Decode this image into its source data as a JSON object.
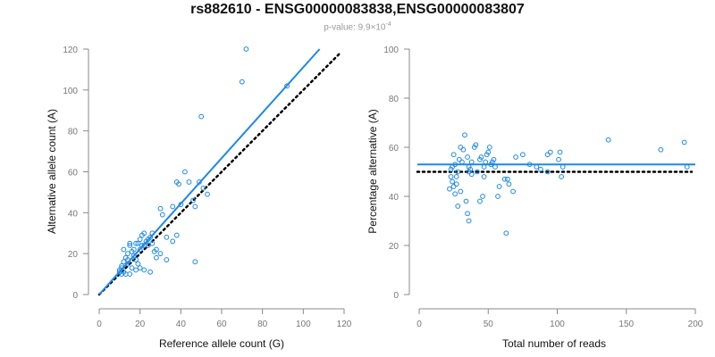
{
  "title": "rs882610 - ENSG00000083838,ENSG00000083807",
  "subtitle": {
    "prefix": "p-value: 9.9×10",
    "exponent": "-4"
  },
  "colors": {
    "points": "#1e88e5",
    "fit_line": "#1e88e5",
    "reference_line": "#000000",
    "axis": "#888888"
  },
  "chart_data": [
    {
      "type": "scatter",
      "xlabel": "Reference allele count (G)",
      "ylabel": "Alternative allele count (A)",
      "xlim": [
        0,
        120
      ],
      "ylim": [
        0,
        120
      ],
      "xticks": [
        0,
        20,
        40,
        60,
        80,
        100,
        120
      ],
      "yticks": [
        0,
        20,
        40,
        60,
        80,
        100,
        120
      ],
      "grid": false,
      "fit_line": {
        "style": "solid",
        "x": [
          0,
          108
        ],
        "y": [
          0,
          120
        ]
      },
      "reference_line": {
        "style": "dotted",
        "x": [
          0,
          118
        ],
        "y": [
          0,
          118
        ]
      },
      "points": [
        [
          72,
          120
        ],
        [
          70,
          104
        ],
        [
          92,
          102
        ],
        [
          50,
          87
        ],
        [
          42,
          60
        ],
        [
          38,
          55
        ],
        [
          39,
          54
        ],
        [
          44,
          55
        ],
        [
          49,
          55
        ],
        [
          51,
          52
        ],
        [
          53,
          49
        ],
        [
          46,
          46
        ],
        [
          40,
          44
        ],
        [
          47,
          43
        ],
        [
          36,
          43
        ],
        [
          30,
          42
        ],
        [
          31,
          39
        ],
        [
          47,
          16
        ],
        [
          36,
          26
        ],
        [
          38,
          29
        ],
        [
          30,
          20
        ],
        [
          28,
          18
        ],
        [
          33,
          17
        ],
        [
          25,
          28
        ],
        [
          26,
          25
        ],
        [
          24,
          24
        ],
        [
          22,
          30
        ],
        [
          21,
          29
        ],
        [
          23,
          26
        ],
        [
          20,
          27
        ],
        [
          19,
          25
        ],
        [
          21,
          24
        ],
        [
          18,
          25
        ],
        [
          20,
          22
        ],
        [
          17,
          22
        ],
        [
          16,
          21
        ],
        [
          15,
          24
        ],
        [
          15,
          25
        ],
        [
          14,
          20
        ],
        [
          13,
          18
        ],
        [
          14,
          17
        ],
        [
          12,
          16
        ],
        [
          11,
          14
        ],
        [
          11,
          13
        ],
        [
          10,
          12
        ],
        [
          10,
          11
        ],
        [
          12,
          11
        ],
        [
          12,
          22
        ],
        [
          18,
          17
        ],
        [
          19,
          15
        ],
        [
          18,
          12
        ],
        [
          20,
          13
        ],
        [
          22,
          12
        ],
        [
          25,
          11
        ],
        [
          13,
          10
        ],
        [
          15,
          10
        ],
        [
          11,
          10
        ],
        [
          16,
          13
        ],
        [
          14,
          15
        ],
        [
          17,
          19
        ],
        [
          22,
          24
        ],
        [
          28,
          22
        ],
        [
          26,
          30
        ],
        [
          24,
          27
        ],
        [
          33,
          28
        ],
        [
          27,
          21
        ]
      ]
    },
    {
      "type": "scatter",
      "xlabel": "Total number of reads",
      "ylabel": "Percentage alternative (A)",
      "xlim": [
        0,
        200
      ],
      "ylim": [
        0,
        100
      ],
      "xticks": [
        0,
        50,
        100,
        150,
        200
      ],
      "yticks": [
        0,
        20,
        40,
        60,
        80,
        100
      ],
      "grid": false,
      "fit_line": {
        "style": "solid",
        "y": 53
      },
      "reference_line": {
        "style": "dotted",
        "y": 50
      },
      "points": [
        [
          192,
          62
        ],
        [
          194,
          52
        ],
        [
          175,
          59
        ],
        [
          137,
          63
        ],
        [
          104,
          52
        ],
        [
          103,
          48
        ],
        [
          102,
          58
        ],
        [
          101,
          55
        ],
        [
          95,
          58
        ],
        [
          93,
          57
        ],
        [
          93,
          50
        ],
        [
          88,
          51
        ],
        [
          85,
          52
        ],
        [
          80,
          53
        ],
        [
          75,
          57
        ],
        [
          70,
          56
        ],
        [
          68,
          42
        ],
        [
          65,
          45
        ],
        [
          63,
          25
        ],
        [
          62,
          47
        ],
        [
          64,
          47
        ],
        [
          58,
          44
        ],
        [
          57,
          40
        ],
        [
          55,
          52
        ],
        [
          54,
          55
        ],
        [
          53,
          54
        ],
        [
          52,
          53
        ],
        [
          51,
          60
        ],
        [
          50,
          58
        ],
        [
          49,
          57
        ],
        [
          48,
          54
        ],
        [
          47,
          52
        ],
        [
          47,
          48
        ],
        [
          46,
          40
        ],
        [
          45,
          56
        ],
        [
          44,
          55
        ],
        [
          44,
          38
        ],
        [
          42,
          50
        ],
        [
          41,
          61
        ],
        [
          40,
          60
        ],
        [
          38,
          49
        ],
        [
          37,
          51
        ],
        [
          36,
          52
        ],
        [
          35,
          56
        ],
        [
          36,
          30
        ],
        [
          35,
          33
        ],
        [
          34,
          38
        ],
        [
          33,
          65
        ],
        [
          32,
          59
        ],
        [
          31,
          54
        ],
        [
          30,
          60
        ],
        [
          30,
          42
        ],
        [
          29,
          55
        ],
        [
          28,
          36
        ],
        [
          28,
          50
        ],
        [
          27,
          45
        ],
        [
          27,
          48
        ],
        [
          26,
          41
        ],
        [
          26,
          53
        ],
        [
          25,
          57
        ],
        [
          25,
          44
        ],
        [
          24,
          46
        ],
        [
          24,
          52
        ],
        [
          23,
          48
        ],
        [
          23,
          51
        ],
        [
          22,
          43
        ],
        [
          36,
          50
        ],
        [
          38,
          54
        ]
      ]
    }
  ]
}
